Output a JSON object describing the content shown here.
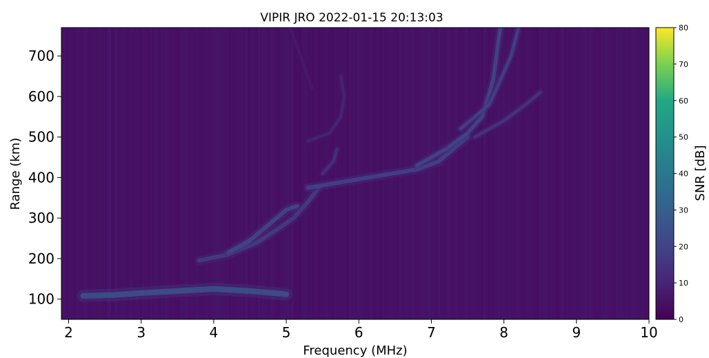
{
  "chart_data": {
    "type": "heatmap",
    "title": "VIPIR JRO 2022-01-15 20:13:03",
    "xlabel": "Frequency (MHz)",
    "ylabel": "Range (km)",
    "xlim": [
      1.9,
      10
    ],
    "ylim": [
      50,
      770
    ],
    "x_ticks": [
      2,
      3,
      4,
      5,
      6,
      7,
      8,
      9,
      10
    ],
    "y_ticks": [
      100,
      200,
      300,
      400,
      500,
      600,
      700
    ],
    "colorbar": {
      "label": "SNR [dB]",
      "range": [
        0,
        80
      ],
      "ticks": [
        0,
        10,
        20,
        30,
        40,
        50,
        60,
        70,
        80
      ],
      "colormap": "viridis"
    },
    "background_snr_db": 4,
    "traces": [
      {
        "snr_db": 25,
        "width_km": 14,
        "points": [
          [
            2.2,
            108
          ],
          [
            2.6,
            110
          ],
          [
            3.0,
            115
          ],
          [
            3.5,
            120
          ],
          [
            4.0,
            125
          ],
          [
            4.5,
            120
          ],
          [
            5.0,
            112
          ]
        ]
      },
      {
        "snr_db": 18,
        "width_km": 10,
        "points": [
          [
            3.8,
            195
          ],
          [
            4.2,
            210
          ],
          [
            4.6,
            240
          ],
          [
            4.9,
            275
          ],
          [
            5.1,
            300
          ],
          [
            5.3,
            340
          ],
          [
            5.45,
            375
          ]
        ]
      },
      {
        "snr_db": 22,
        "width_km": 10,
        "points": [
          [
            4.2,
            215
          ],
          [
            4.5,
            245
          ],
          [
            4.8,
            290
          ],
          [
            5.0,
            320
          ],
          [
            5.15,
            330
          ]
        ]
      },
      {
        "snr_db": 20,
        "width_km": 10,
        "points": [
          [
            5.3,
            375
          ],
          [
            5.8,
            390
          ],
          [
            6.3,
            405
          ],
          [
            6.8,
            420
          ],
          [
            7.1,
            440
          ],
          [
            7.3,
            470
          ],
          [
            7.5,
            500
          ]
        ]
      },
      {
        "snr_db": 22,
        "width_km": 9,
        "points": [
          [
            6.8,
            430
          ],
          [
            7.2,
            470
          ],
          [
            7.5,
            510
          ],
          [
            7.7,
            550
          ],
          [
            7.85,
            640
          ],
          [
            7.95,
            770
          ]
        ]
      },
      {
        "snr_db": 20,
        "width_km": 8,
        "points": [
          [
            7.4,
            520
          ],
          [
            7.8,
            580
          ],
          [
            8.1,
            700
          ],
          [
            8.2,
            770
          ]
        ]
      },
      {
        "snr_db": 16,
        "width_km": 8,
        "points": [
          [
            7.6,
            500
          ],
          [
            8.0,
            540
          ],
          [
            8.3,
            580
          ],
          [
            8.5,
            610
          ]
        ]
      },
      {
        "snr_db": 10,
        "width_km": 8,
        "points": [
          [
            5.3,
            490
          ],
          [
            5.6,
            510
          ],
          [
            5.75,
            550
          ],
          [
            5.8,
            600
          ],
          [
            5.75,
            650
          ]
        ]
      },
      {
        "snr_db": 7,
        "width_km": 8,
        "points": [
          [
            5.05,
            770
          ],
          [
            5.2,
            700
          ],
          [
            5.35,
            620
          ]
        ]
      },
      {
        "snr_db": 14,
        "width_km": 8,
        "points": [
          [
            5.5,
            410
          ],
          [
            5.65,
            440
          ],
          [
            5.7,
            470
          ]
        ]
      }
    ]
  }
}
